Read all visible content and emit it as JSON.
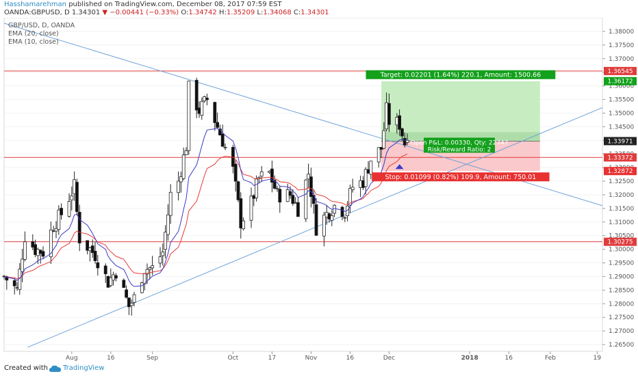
{
  "header": {
    "author": "Hasshamarehman",
    "published": "published on TradingView.com, December 08, 2017 07:59 EST",
    "symbol": "OANDA:GBPUSD, D",
    "last": "1.34301",
    "change": "−0.00441 (−0.33%)",
    "o_label": "O:",
    "o": "1.34742",
    "h_label": "H:",
    "h": "1.35209",
    "l_label": "L:",
    "l": "1.34068",
    "c_label": "C:",
    "c": "1.34301"
  },
  "legend": {
    "title": "GBP/USD, D, OANDA",
    "ema20": "EMA (20, close)",
    "ema10": "EMA (10, close)"
  },
  "footer": {
    "created": "Created with",
    "brand": "TradingView"
  },
  "colors": {
    "up": "#ffffff",
    "down": "#111111",
    "ema20": "#e83a3a",
    "ema10": "#3a3ac8",
    "trend": "#6fa3d9",
    "level": "#e03c3c",
    "target": "#13a01b",
    "stop": "#e83131"
  },
  "chart_data": {
    "type": "candlestick",
    "ylim": [
      1.2625,
      1.385
    ],
    "y_ticks": [
      "1.38000",
      "1.37500",
      "1.37000",
      "1.36500",
      "1.36000",
      "1.35500",
      "1.35000",
      "1.34500",
      "1.34000",
      "1.33500",
      "1.33000",
      "1.32500",
      "1.32000",
      "1.31500",
      "1.31000",
      "1.30500",
      "1.30000",
      "1.29500",
      "1.29000",
      "1.28500",
      "1.28000",
      "1.27500",
      "1.27000",
      "1.26500"
    ],
    "x_ticks": [
      {
        "label": "Aug",
        "date": "2017-08-01"
      },
      {
        "label": "16",
        "date": "2017-08-16"
      },
      {
        "label": "Sep",
        "date": "2017-09-01"
      },
      {
        "label": "Oct",
        "date": "2017-10-02"
      },
      {
        "label": "17",
        "date": "2017-10-17"
      },
      {
        "label": "Nov",
        "date": "2017-11-01"
      },
      {
        "label": "16",
        "date": "2017-11-16"
      },
      {
        "label": "Dec",
        "date": "2017-12-01"
      },
      {
        "label": "2018",
        "date": "2018-01-01"
      },
      {
        "label": "16",
        "date": "2018-01-16"
      },
      {
        "label": "Feb",
        "date": "2018-02-01"
      },
      {
        "label": "19",
        "date": "2018-02-19"
      }
    ],
    "x_range": [
      "2017-07-06",
      "2018-02-21"
    ],
    "close_path": [
      [
        "2017-07-06",
        1.29
      ],
      [
        "2017-07-11",
        1.285
      ],
      [
        "2017-07-14",
        1.305
      ],
      [
        "2017-07-18",
        1.3
      ],
      [
        "2017-07-21",
        1.299
      ],
      [
        "2017-07-25",
        1.309
      ],
      [
        "2017-07-28",
        1.313
      ],
      [
        "2017-08-02",
        1.323
      ],
      [
        "2017-08-04",
        1.304
      ],
      [
        "2017-08-10",
        1.298
      ],
      [
        "2017-08-15",
        1.288
      ],
      [
        "2017-08-18",
        1.292
      ],
      [
        "2017-08-23",
        1.279
      ],
      [
        "2017-08-25",
        1.282
      ],
      [
        "2017-08-29",
        1.293
      ],
      [
        "2017-09-01",
        1.293
      ],
      [
        "2017-09-05",
        1.299
      ],
      [
        "2017-09-08",
        1.32
      ],
      [
        "2017-09-11",
        1.325
      ],
      [
        "2017-09-14",
        1.338
      ],
      [
        "2017-09-15",
        1.359
      ],
      [
        "2017-09-19",
        1.351
      ],
      [
        "2017-09-22",
        1.355
      ],
      [
        "2017-09-26",
        1.345
      ],
      [
        "2017-09-28",
        1.34
      ],
      [
        "2017-10-02",
        1.329
      ],
      [
        "2017-10-05",
        1.31
      ],
      [
        "2017-10-09",
        1.317
      ],
      [
        "2017-10-12",
        1.326
      ],
      [
        "2017-10-16",
        1.328
      ],
      [
        "2017-10-19",
        1.32
      ],
      [
        "2017-10-24",
        1.32
      ],
      [
        "2017-10-27",
        1.315
      ],
      [
        "2017-10-31",
        1.328
      ],
      [
        "2017-11-03",
        1.308
      ],
      [
        "2017-11-07",
        1.313
      ],
      [
        "2017-11-10",
        1.316
      ],
      [
        "2017-11-14",
        1.314
      ],
      [
        "2017-11-17",
        1.323
      ],
      [
        "2017-11-21",
        1.325
      ],
      [
        "2017-11-24",
        1.333
      ],
      [
        "2017-11-28",
        1.337
      ],
      [
        "2017-11-30",
        1.351
      ],
      [
        "2017-12-01",
        1.347
      ],
      [
        "2017-12-05",
        1.346
      ],
      [
        "2017-12-07",
        1.339
      ],
      [
        "2017-12-08",
        1.343
      ]
    ],
    "trend_lines": [
      {
        "from": [
          "2017-07-06",
          1.383
        ],
        "to": [
          "2018-02-21",
          1.316
        ]
      },
      {
        "from": [
          "2017-07-15",
          1.264
        ],
        "to": [
          "2018-02-21",
          1.352
        ]
      }
    ],
    "horizontal_levels": [
      1.36545,
      1.33372,
      1.30275
    ],
    "price_labels": [
      {
        "text": "1.36545",
        "kind": "level",
        "y": 1.36545
      },
      {
        "text": "1.36172",
        "kind": "target",
        "y": 1.36172
      },
      {
        "text": "1.33971",
        "kind": "current",
        "y": 1.33971
      },
      {
        "text": "1.33372",
        "kind": "level",
        "y": 1.33372
      },
      {
        "text": "1.32872",
        "kind": "stop",
        "y": 1.32872
      },
      {
        "text": "1.30275",
        "kind": "level",
        "y": 1.30275
      }
    ],
    "position": {
      "entry": 1.33971,
      "target": 1.36172,
      "stop": 1.32872,
      "current": 1.34301,
      "start_date": "2017-11-28",
      "end_date": "2018-01-28",
      "target_label": "Target: 0.02201 (1.64%) 220.1, Amount: 1500.66",
      "stop_label": "Stop: 0.01099 (0.82%) 109.9, Amount: 750.01",
      "pnl_label": "Open P&L: 0.00330, Qty: 22747",
      "rr_label": "Risk/Reward Ratio: 2"
    }
  }
}
